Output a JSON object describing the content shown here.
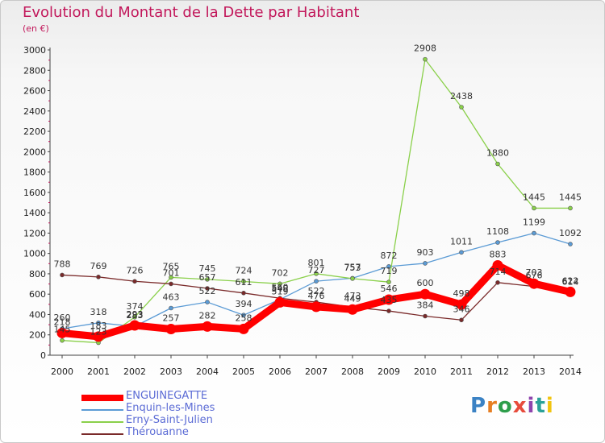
{
  "title": "Evolution du Montant de la Dette par Habitant",
  "unit": "(en €)",
  "logo": {
    "letters": [
      "P",
      "r",
      "o",
      "x",
      "i",
      "t",
      "i"
    ],
    "colors": [
      "#3b82c4",
      "#e67e22",
      "#2e9e4b",
      "#e74c3c",
      "#8e44ad",
      "#2aa198",
      "#f1c40f"
    ]
  },
  "chart_data": {
    "type": "line",
    "x": [
      "2000",
      "2001",
      "2002",
      "2003",
      "2004",
      "2005",
      "2006",
      "2007",
      "2008",
      "2009",
      "2010",
      "2011",
      "2012",
      "2013",
      "2014"
    ],
    "ylim": [
      0,
      3000
    ],
    "yticks": [
      "0",
      "200",
      "400",
      "600",
      "800",
      "1000",
      "1200",
      "1400",
      "1600",
      "1800",
      "2000",
      "2200",
      "2400",
      "2600",
      "2800",
      "3000"
    ],
    "grid": false,
    "legend": "bottom-left",
    "series": [
      {
        "name": "Enquin-les-Mines",
        "color": "#5b9bd5",
        "width": 1.3,
        "dot": 5,
        "values": [
          260,
          318,
          283,
          463,
          522,
          394,
          548,
          727,
          757,
          872,
          903,
          1011,
          1108,
          1199,
          1092
        ],
        "labels": [
          "260",
          "318",
          "283",
          "463",
          "522",
          "394",
          "548",
          "727",
          "757",
          "872",
          "903",
          "1011",
          "1108",
          "1199",
          "1092"
        ]
      },
      {
        "name": "Erny-Saint-Julien",
        "color": "#8ad04a",
        "width": 1.3,
        "dot": 5,
        "values": [
          145,
          123,
          374,
          765,
          745,
          724,
          702,
          801,
          753,
          719,
          2908,
          2438,
          1880,
          1445,
          1445
        ],
        "labels": [
          "145",
          "123",
          "374",
          "765",
          "745",
          "724",
          "702",
          "801",
          "753",
          "719",
          "2908",
          "2438",
          "1880",
          "1445",
          "1445"
        ]
      },
      {
        "name": "Thérouanne",
        "color": "#7a2a2a",
        "width": 1.3,
        "dot": 5,
        "values": [
          788,
          769,
          726,
          701,
          657,
          611,
          560,
          522,
          473,
          435,
          384,
          346,
          714,
          676,
          614
        ],
        "labels": [
          "788",
          "769",
          "726",
          "701",
          "657",
          "611",
          "560",
          "522",
          "473",
          "435",
          "384",
          "346",
          "714",
          "676",
          "614"
        ]
      },
      {
        "name": "ENGUINEGATTE",
        "color": "#ff0000",
        "width": 9,
        "dot": 13,
        "values": [
          218,
          183,
          293,
          257,
          282,
          258,
          519,
          476,
          449,
          546,
          600,
          498,
          883,
          703,
          622
        ],
        "labels": [
          "218",
          "183",
          "293",
          "257",
          "282",
          "258",
          "519",
          "476",
          "449",
          "546",
          "600",
          "498",
          "883",
          "703",
          "622"
        ]
      }
    ]
  }
}
